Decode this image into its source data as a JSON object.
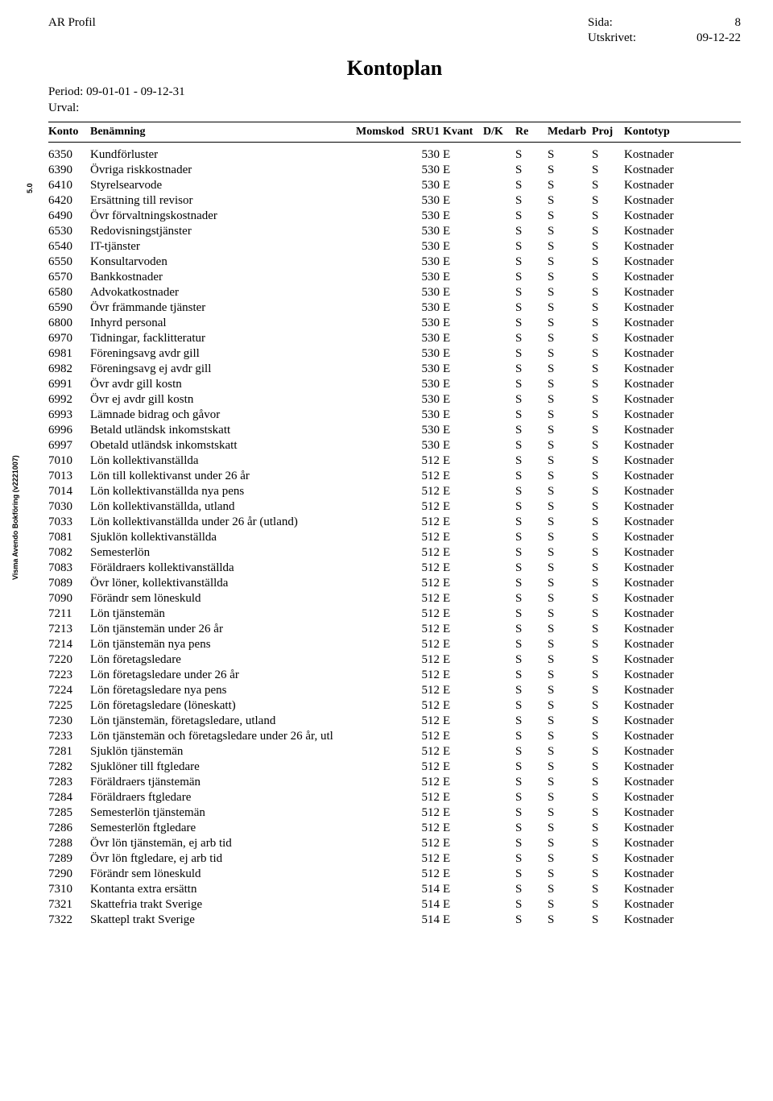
{
  "header": {
    "company": "AR Profil",
    "page_label": "Sida:",
    "page_number": "8",
    "printed_label": "Utskrivet:",
    "printed_date": "09-12-22"
  },
  "title": "Kontoplan",
  "period_label": "Period:",
  "period_value": "09-01-01 - 09-12-31",
  "urval_label": "Urval:",
  "side_text": "Visma Avendo Bokföring (v2221007)",
  "side_text2": "5.0",
  "columns": {
    "konto": "Konto",
    "benamning": "Benämning",
    "momskod": "Momskod",
    "sru1": "SRU1",
    "kvant": "Kvant",
    "dk": "D/K",
    "re": "Re",
    "medarb": "Medarb",
    "proj": "Proj",
    "kontotyp": "Kontotyp"
  },
  "rows": [
    {
      "konto": "6350",
      "ben": "Kundförluster",
      "sru": "530",
      "kvant": "E",
      "re": "S",
      "medarb": "S",
      "proj": "S",
      "ktyp": "Kostnader"
    },
    {
      "konto": "6390",
      "ben": "Övriga riskkostnader",
      "sru": "530",
      "kvant": "E",
      "re": "S",
      "medarb": "S",
      "proj": "S",
      "ktyp": "Kostnader"
    },
    {
      "konto": "6410",
      "ben": "Styrelsearvode",
      "sru": "530",
      "kvant": "E",
      "re": "S",
      "medarb": "S",
      "proj": "S",
      "ktyp": "Kostnader"
    },
    {
      "konto": "6420",
      "ben": "Ersättning till revisor",
      "sru": "530",
      "kvant": "E",
      "re": "S",
      "medarb": "S",
      "proj": "S",
      "ktyp": "Kostnader"
    },
    {
      "konto": "6490",
      "ben": "Övr förvaltningskostnader",
      "sru": "530",
      "kvant": "E",
      "re": "S",
      "medarb": "S",
      "proj": "S",
      "ktyp": "Kostnader"
    },
    {
      "konto": "6530",
      "ben": "Redovisningstjänster",
      "sru": "530",
      "kvant": "E",
      "re": "S",
      "medarb": "S",
      "proj": "S",
      "ktyp": "Kostnader"
    },
    {
      "konto": "6540",
      "ben": "IT-tjänster",
      "sru": "530",
      "kvant": "E",
      "re": "S",
      "medarb": "S",
      "proj": "S",
      "ktyp": "Kostnader"
    },
    {
      "konto": "6550",
      "ben": "Konsultarvoden",
      "sru": "530",
      "kvant": "E",
      "re": "S",
      "medarb": "S",
      "proj": "S",
      "ktyp": "Kostnader"
    },
    {
      "konto": "6570",
      "ben": "Bankkostnader",
      "sru": "530",
      "kvant": "E",
      "re": "S",
      "medarb": "S",
      "proj": "S",
      "ktyp": "Kostnader"
    },
    {
      "konto": "6580",
      "ben": "Advokatkostnader",
      "sru": "530",
      "kvant": "E",
      "re": "S",
      "medarb": "S",
      "proj": "S",
      "ktyp": "Kostnader"
    },
    {
      "konto": "6590",
      "ben": "Övr främmande tjänster",
      "sru": "530",
      "kvant": "E",
      "re": "S",
      "medarb": "S",
      "proj": "S",
      "ktyp": "Kostnader"
    },
    {
      "konto": "6800",
      "ben": "Inhyrd personal",
      "sru": "530",
      "kvant": "E",
      "re": "S",
      "medarb": "S",
      "proj": "S",
      "ktyp": "Kostnader"
    },
    {
      "konto": "6970",
      "ben": "Tidningar, facklitteratur",
      "sru": "530",
      "kvant": "E",
      "re": "S",
      "medarb": "S",
      "proj": "S",
      "ktyp": "Kostnader"
    },
    {
      "konto": "6981",
      "ben": "Föreningsavg avdr gill",
      "sru": "530",
      "kvant": "E",
      "re": "S",
      "medarb": "S",
      "proj": "S",
      "ktyp": "Kostnader"
    },
    {
      "konto": "6982",
      "ben": "Föreningsavg ej avdr gill",
      "sru": "530",
      "kvant": "E",
      "re": "S",
      "medarb": "S",
      "proj": "S",
      "ktyp": "Kostnader"
    },
    {
      "konto": "6991",
      "ben": "Övr avdr gill kostn",
      "sru": "530",
      "kvant": "E",
      "re": "S",
      "medarb": "S",
      "proj": "S",
      "ktyp": "Kostnader"
    },
    {
      "konto": "6992",
      "ben": "Övr ej avdr gill kostn",
      "sru": "530",
      "kvant": "E",
      "re": "S",
      "medarb": "S",
      "proj": "S",
      "ktyp": "Kostnader"
    },
    {
      "konto": "6993",
      "ben": "Lämnade bidrag och gåvor",
      "sru": "530",
      "kvant": "E",
      "re": "S",
      "medarb": "S",
      "proj": "S",
      "ktyp": "Kostnader"
    },
    {
      "konto": "6996",
      "ben": "Betald utländsk inkomstskatt",
      "sru": "530",
      "kvant": "E",
      "re": "S",
      "medarb": "S",
      "proj": "S",
      "ktyp": "Kostnader"
    },
    {
      "konto": "6997",
      "ben": "Obetald utländsk inkomstskatt",
      "sru": "530",
      "kvant": "E",
      "re": "S",
      "medarb": "S",
      "proj": "S",
      "ktyp": "Kostnader"
    },
    {
      "konto": "7010",
      "ben": "Lön kollektivanställda",
      "sru": "512",
      "kvant": "E",
      "re": "S",
      "medarb": "S",
      "proj": "S",
      "ktyp": "Kostnader"
    },
    {
      "konto": "7013",
      "ben": "Lön till kollektivanst under 26 år",
      "sru": "512",
      "kvant": "E",
      "re": "S",
      "medarb": "S",
      "proj": "S",
      "ktyp": "Kostnader"
    },
    {
      "konto": "7014",
      "ben": "Lön kollektivanställda nya pens",
      "sru": "512",
      "kvant": "E",
      "re": "S",
      "medarb": "S",
      "proj": "S",
      "ktyp": "Kostnader"
    },
    {
      "konto": "7030",
      "ben": "Lön kollektivanställda, utland",
      "sru": "512",
      "kvant": "E",
      "re": "S",
      "medarb": "S",
      "proj": "S",
      "ktyp": "Kostnader"
    },
    {
      "konto": "7033",
      "ben": "Lön kollektivanställda under 26 år (utland)",
      "sru": "512",
      "kvant": "E",
      "re": "S",
      "medarb": "S",
      "proj": "S",
      "ktyp": "Kostnader"
    },
    {
      "konto": "7081",
      "ben": "Sjuklön kollektivanställda",
      "sru": "512",
      "kvant": "E",
      "re": "S",
      "medarb": "S",
      "proj": "S",
      "ktyp": "Kostnader"
    },
    {
      "konto": "7082",
      "ben": "Semesterlön",
      "sru": "512",
      "kvant": "E",
      "re": "S",
      "medarb": "S",
      "proj": "S",
      "ktyp": "Kostnader"
    },
    {
      "konto": "7083",
      "ben": "Föräldraers kollektivanställda",
      "sru": "512",
      "kvant": "E",
      "re": "S",
      "medarb": "S",
      "proj": "S",
      "ktyp": "Kostnader"
    },
    {
      "konto": "7089",
      "ben": "Övr löner, kollektivanställda",
      "sru": "512",
      "kvant": "E",
      "re": "S",
      "medarb": "S",
      "proj": "S",
      "ktyp": "Kostnader"
    },
    {
      "konto": "7090",
      "ben": "Förändr sem löneskuld",
      "sru": "512",
      "kvant": "E",
      "re": "S",
      "medarb": "S",
      "proj": "S",
      "ktyp": "Kostnader"
    },
    {
      "konto": "7211",
      "ben": "Lön tjänstemän",
      "sru": "512",
      "kvant": "E",
      "re": "S",
      "medarb": "S",
      "proj": "S",
      "ktyp": "Kostnader"
    },
    {
      "konto": "7213",
      "ben": "Lön tjänstemän under 26 år",
      "sru": "512",
      "kvant": "E",
      "re": "S",
      "medarb": "S",
      "proj": "S",
      "ktyp": "Kostnader"
    },
    {
      "konto": "7214",
      "ben": "Lön tjänstemän nya pens",
      "sru": "512",
      "kvant": "E",
      "re": "S",
      "medarb": "S",
      "proj": "S",
      "ktyp": "Kostnader"
    },
    {
      "konto": "7220",
      "ben": "Lön företagsledare",
      "sru": "512",
      "kvant": "E",
      "re": "S",
      "medarb": "S",
      "proj": "S",
      "ktyp": "Kostnader"
    },
    {
      "konto": "7223",
      "ben": "Lön företagsledare under 26 år",
      "sru": "512",
      "kvant": "E",
      "re": "S",
      "medarb": "S",
      "proj": "S",
      "ktyp": "Kostnader"
    },
    {
      "konto": "7224",
      "ben": "Lön företagsledare nya pens",
      "sru": "512",
      "kvant": "E",
      "re": "S",
      "medarb": "S",
      "proj": "S",
      "ktyp": "Kostnader"
    },
    {
      "konto": "7225",
      "ben": "Lön företagsledare (löneskatt)",
      "sru": "512",
      "kvant": "E",
      "re": "S",
      "medarb": "S",
      "proj": "S",
      "ktyp": "Kostnader"
    },
    {
      "konto": "7230",
      "ben": "Lön tjänstemän, företagsledare, utland",
      "sru": "512",
      "kvant": "E",
      "re": "S",
      "medarb": "S",
      "proj": "S",
      "ktyp": "Kostnader"
    },
    {
      "konto": "7233",
      "ben": "Lön tjänstemän och företagsledare under 26 år, utl",
      "sru": "512",
      "kvant": "E",
      "re": "S",
      "medarb": "S",
      "proj": "S",
      "ktyp": "Kostnader"
    },
    {
      "konto": "7281",
      "ben": "Sjuklön tjänstemän",
      "sru": "512",
      "kvant": "E",
      "re": "S",
      "medarb": "S",
      "proj": "S",
      "ktyp": "Kostnader"
    },
    {
      "konto": "7282",
      "ben": "Sjuklöner till ftgledare",
      "sru": "512",
      "kvant": "E",
      "re": "S",
      "medarb": "S",
      "proj": "S",
      "ktyp": "Kostnader"
    },
    {
      "konto": "7283",
      "ben": "Föräldraers tjänstemän",
      "sru": "512",
      "kvant": "E",
      "re": "S",
      "medarb": "S",
      "proj": "S",
      "ktyp": "Kostnader"
    },
    {
      "konto": "7284",
      "ben": "Föräldraers ftgledare",
      "sru": "512",
      "kvant": "E",
      "re": "S",
      "medarb": "S",
      "proj": "S",
      "ktyp": "Kostnader"
    },
    {
      "konto": "7285",
      "ben": "Semesterlön tjänstemän",
      "sru": "512",
      "kvant": "E",
      "re": "S",
      "medarb": "S",
      "proj": "S",
      "ktyp": "Kostnader"
    },
    {
      "konto": "7286",
      "ben": "Semesterlön ftgledare",
      "sru": "512",
      "kvant": "E",
      "re": "S",
      "medarb": "S",
      "proj": "S",
      "ktyp": "Kostnader"
    },
    {
      "konto": "7288",
      "ben": "Övr lön tjänstemän, ej arb tid",
      "sru": "512",
      "kvant": "E",
      "re": "S",
      "medarb": "S",
      "proj": "S",
      "ktyp": "Kostnader"
    },
    {
      "konto": "7289",
      "ben": "Övr lön ftgledare, ej arb tid",
      "sru": "512",
      "kvant": "E",
      "re": "S",
      "medarb": "S",
      "proj": "S",
      "ktyp": "Kostnader"
    },
    {
      "konto": "7290",
      "ben": "Förändr sem löneskuld",
      "sru": "512",
      "kvant": "E",
      "re": "S",
      "medarb": "S",
      "proj": "S",
      "ktyp": "Kostnader"
    },
    {
      "konto": "7310",
      "ben": "Kontanta extra ersättn",
      "sru": "514",
      "kvant": "E",
      "re": "S",
      "medarb": "S",
      "proj": "S",
      "ktyp": "Kostnader"
    },
    {
      "konto": "7321",
      "ben": "Skattefria trakt Sverige",
      "sru": "514",
      "kvant": "E",
      "re": "S",
      "medarb": "S",
      "proj": "S",
      "ktyp": "Kostnader"
    },
    {
      "konto": "7322",
      "ben": "Skattepl trakt Sverige",
      "sru": "514",
      "kvant": "E",
      "re": "S",
      "medarb": "S",
      "proj": "S",
      "ktyp": "Kostnader"
    }
  ]
}
